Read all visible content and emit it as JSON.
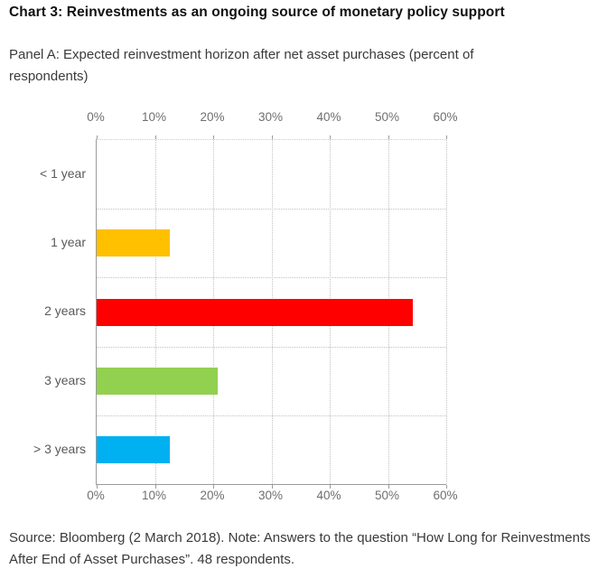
{
  "page": {
    "title": "Chart 3: Reinvestments as an ongoing source of monetary policy support",
    "subtitle": "Panel A: Expected reinvestment horizon after net asset purchases (percent of respondents)",
    "source_note": "Source: Bloomberg (2 March 2018). Note: Answers to the question “How Long for Reinvestments After End of Asset Purchases”. 48 respondents."
  },
  "chart_data": {
    "type": "bar",
    "orientation": "horizontal",
    "title": "Chart 3: Reinvestments as an ongoing source of monetary policy support",
    "subtitle": "Panel A: Expected reinvestment horizon after net asset purchases (percent of respondents)",
    "categories": [
      "< 1 year",
      "1 year",
      "2 years",
      "3 years",
      "> 3 years"
    ],
    "values": [
      0,
      12.5,
      54.2,
      20.8,
      12.5
    ],
    "bar_colors": [
      "#ffffff",
      "#ffc000",
      "#ff0000",
      "#92d050",
      "#00b0f0"
    ],
    "x_ticks": [
      "0%",
      "10%",
      "20%",
      "30%",
      "40%",
      "50%",
      "60%"
    ],
    "xlim": [
      0,
      60
    ],
    "xlabel": "",
    "ylabel": "",
    "grid": "dotted",
    "legend": "none",
    "respondents": 48,
    "axis_color": "#9b9b9b",
    "grid_color": "#c2c2c2"
  }
}
